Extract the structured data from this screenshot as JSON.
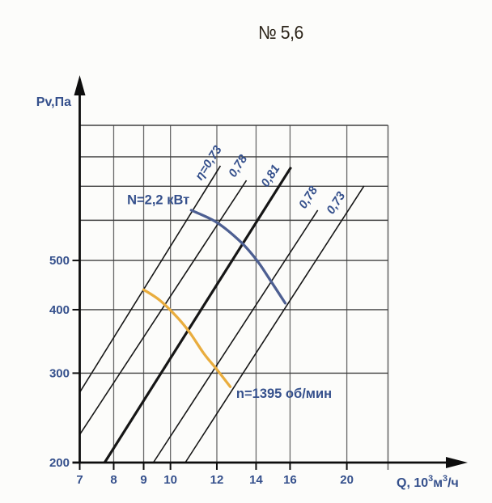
{
  "chart_data": {
    "type": "line",
    "title": "№ 5,6",
    "x_axis": {
      "label": "Q, 10³м³/ч",
      "scale": "log",
      "min": 7,
      "max": 23.5,
      "ticks": [
        7,
        8,
        9,
        10,
        12,
        14,
        16,
        20
      ],
      "gridlines": [
        8,
        9,
        10,
        12,
        14,
        16,
        20
      ]
    },
    "y_axis": {
      "label": "Pv,Па",
      "scale": "log",
      "min": 200,
      "max": 922,
      "ticks": [
        200,
        300,
        400,
        500
      ],
      "gridlines": [
        300,
        400,
        500,
        600,
        700,
        800
      ]
    },
    "efficiency_lines": [
      {
        "label": "η=0,73",
        "thick": false,
        "points": [
          [
            7.0,
            275
          ],
          [
            12.17,
            768
          ]
        ],
        "label_anchor": [
          11.76,
          771
        ]
      },
      {
        "label": "0,78",
        "thick": false,
        "points": [
          [
            7.0,
            227
          ],
          [
            13.48,
            719
          ]
        ],
        "label_anchor": [
          13.2,
          760
        ]
      },
      {
        "label": "0,81",
        "thick": true,
        "points": [
          [
            7.72,
            200
          ],
          [
            16.06,
            763
          ]
        ],
        "label_anchor": [
          15.0,
          727
        ]
      },
      {
        "label": "0,78",
        "thick": false,
        "points": [
          [
            9.35,
            200
          ],
          [
            17.84,
            628
          ]
        ],
        "label_anchor": [
          17.4,
          659
        ]
      },
      {
        "label": "0,73",
        "thick": false,
        "points": [
          [
            10.6,
            200
          ],
          [
            21.4,
            701
          ]
        ],
        "label_anchor": [
          19.4,
          643
        ]
      }
    ],
    "curves": [
      {
        "name": "power-curve",
        "label": "N=2,2 кВт",
        "color": "#4d5f92",
        "label_align": "end",
        "label_anchor": [
          10.78,
          645
        ],
        "points": [
          [
            10.85,
            628
          ],
          [
            12.0,
            594
          ],
          [
            13.2,
            543
          ],
          [
            14.05,
            500
          ],
          [
            14.7,
            463
          ],
          [
            15.7,
            412
          ]
        ]
      },
      {
        "name": "speed-curve",
        "label": "n=1395 об/мин",
        "color": "#e9ad3e",
        "label_align": "start",
        "label_anchor": [
          12.95,
          268
        ],
        "points": [
          [
            9.0,
            438
          ],
          [
            9.6,
            417
          ],
          [
            10.3,
            385
          ],
          [
            10.8,
            360
          ],
          [
            11.4,
            328
          ],
          [
            12.0,
            305
          ],
          [
            12.65,
            282
          ]
        ]
      }
    ],
    "colors": {
      "text_blue": "#35508c",
      "axis_black": "#0d0d0d",
      "grid_horizontal": "#3f3f3f",
      "grid_vertical": "#6a6a6a",
      "diagonal_line": "#161616",
      "title_text": "#2b2318",
      "background": "#fcfcfa"
    }
  }
}
